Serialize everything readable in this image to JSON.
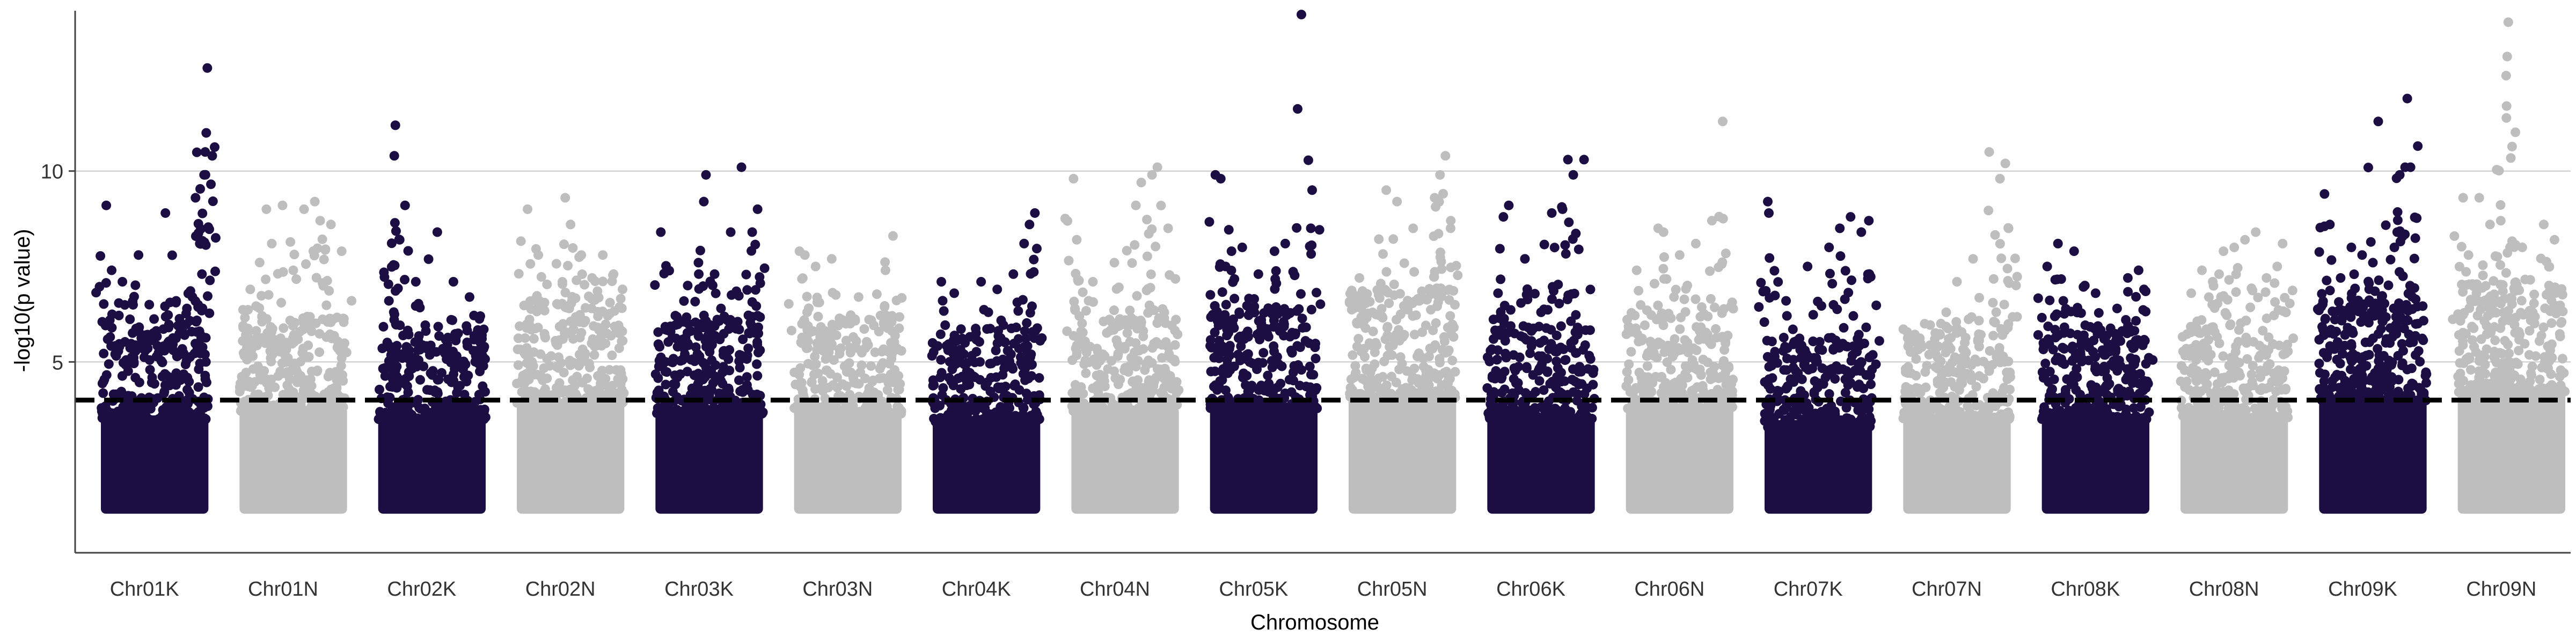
{
  "chart_data": {
    "type": "scatter",
    "title": "",
    "xlabel": "Chromosome",
    "ylabel": "-log10(p value)",
    "ylim": [
      0,
      14.2
    ],
    "yticks": [
      5,
      10
    ],
    "grid": "horizontal major lines only",
    "legend": "none",
    "threshold": {
      "y": 4,
      "style": "dashed",
      "color": "#000000"
    },
    "colors": {
      "odd": "#1c0e42",
      "even": "#bebebe"
    },
    "categories": [
      "Chr01K",
      "Chr01N",
      "Chr02K",
      "Chr02N",
      "Chr03K",
      "Chr03N",
      "Chr04K",
      "Chr04N",
      "Chr05K",
      "Chr05N",
      "Chr06K",
      "Chr06N",
      "Chr07K",
      "Chr07N",
      "Chr08K",
      "Chr08N",
      "Chr09K",
      "Chr09N"
    ],
    "series": [
      {
        "category": "Chr01K",
        "band_top": 5.0,
        "peaks": [
          [
            0.05,
            9.1
          ],
          [
            0.1,
            7.4
          ],
          [
            0.2,
            7.1
          ],
          [
            0.35,
            7.8
          ],
          [
            0.45,
            6.5
          ],
          [
            0.6,
            8.9
          ],
          [
            0.7,
            6.6
          ],
          [
            0.8,
            6.4
          ],
          [
            0.88,
            9.3
          ],
          [
            0.92,
            8.1
          ],
          [
            0.94,
            7.3
          ],
          [
            0.96,
            9.9
          ],
          [
            0.97,
            10.5
          ],
          [
            0.98,
            11.0
          ],
          [
            0.99,
            12.7
          ]
        ]
      },
      {
        "category": "Chr01N",
        "band_top": 5.3,
        "peaks": [
          [
            0.1,
            6.9
          ],
          [
            0.25,
            9.0
          ],
          [
            0.3,
            8.1
          ],
          [
            0.4,
            9.1
          ],
          [
            0.5,
            7.4
          ],
          [
            0.6,
            9.0
          ],
          [
            0.7,
            9.2
          ],
          [
            0.75,
            8.7
          ],
          [
            0.85,
            8.6
          ],
          [
            0.95,
            7.9
          ]
        ]
      },
      {
        "category": "Chr02K",
        "band_top": 5.0,
        "peaks": [
          [
            0.1,
            6.6
          ],
          [
            0.15,
            10.4
          ],
          [
            0.16,
            11.2
          ],
          [
            0.2,
            8.2
          ],
          [
            0.25,
            9.1
          ],
          [
            0.35,
            7.1
          ],
          [
            0.55,
            8.4
          ],
          [
            0.7,
            7.1
          ],
          [
            0.85,
            6.7
          ],
          [
            0.95,
            6.2
          ]
        ]
      },
      {
        "category": "Chr02N",
        "band_top": 5.6,
        "peaks": [
          [
            0.1,
            9.0
          ],
          [
            0.2,
            7.8
          ],
          [
            0.45,
            9.3
          ],
          [
            0.5,
            8.6
          ],
          [
            0.6,
            7.8
          ],
          [
            0.7,
            7.2
          ],
          [
            0.8,
            7.8
          ],
          [
            0.9,
            7.3
          ]
        ]
      },
      {
        "category": "Chr03K",
        "band_top": 5.2,
        "peaks": [
          [
            0.05,
            8.4
          ],
          [
            0.3,
            7.0
          ],
          [
            0.4,
            7.6
          ],
          [
            0.45,
            9.2
          ],
          [
            0.47,
            9.9
          ],
          [
            0.55,
            7.3
          ],
          [
            0.7,
            8.4
          ],
          [
            0.8,
            10.1
          ],
          [
            0.9,
            8.4
          ],
          [
            0.95,
            9.0
          ]
        ]
      },
      {
        "category": "Chr03N",
        "band_top": 5.2,
        "peaks": [
          [
            0.05,
            7.9
          ],
          [
            0.1,
            7.8
          ],
          [
            0.2,
            7.5
          ],
          [
            0.35,
            7.7
          ],
          [
            0.45,
            6.1
          ],
          [
            0.6,
            6.7
          ],
          [
            0.85,
            7.4
          ],
          [
            0.92,
            8.3
          ]
        ]
      },
      {
        "category": "Chr04K",
        "band_top": 4.9,
        "peaks": [
          [
            0.08,
            7.1
          ],
          [
            0.2,
            6.8
          ],
          [
            0.3,
            5.5
          ],
          [
            0.45,
            7.1
          ],
          [
            0.6,
            6.9
          ],
          [
            0.75,
            7.3
          ],
          [
            0.85,
            8.1
          ],
          [
            0.9,
            8.6
          ],
          [
            0.95,
            8.9
          ]
        ]
      },
      {
        "category": "Chr04N",
        "band_top": 5.3,
        "peaks": [
          [
            0.02,
            9.8
          ],
          [
            0.05,
            8.2
          ],
          [
            0.2,
            7.1
          ],
          [
            0.4,
            7.6
          ],
          [
            0.6,
            9.1
          ],
          [
            0.65,
            9.7
          ],
          [
            0.75,
            9.9
          ],
          [
            0.8,
            10.1
          ],
          [
            0.9,
            8.5
          ]
        ]
      },
      {
        "category": "Chr05K",
        "band_top": 5.4,
        "peaks": [
          [
            0.05,
            9.9
          ],
          [
            0.1,
            9.8
          ],
          [
            0.15,
            6.5
          ],
          [
            0.2,
            7.9
          ],
          [
            0.3,
            8.0
          ],
          [
            0.45,
            7.3
          ],
          [
            0.6,
            7.9
          ],
          [
            0.7,
            8.1
          ],
          [
            0.85,
            14.1
          ],
          [
            0.95,
            9.5
          ]
        ]
      },
      {
        "category": "Chr05N",
        "band_top": 5.8,
        "peaks": [
          [
            0.1,
            7.2
          ],
          [
            0.35,
            9.5
          ],
          [
            0.45,
            9.2
          ],
          [
            0.6,
            8.5
          ],
          [
            0.8,
            9.3
          ],
          [
            0.85,
            9.9
          ],
          [
            0.9,
            10.4
          ],
          [
            0.95,
            8.7
          ]
        ]
      },
      {
        "category": "Chr06K",
        "band_top": 5.0,
        "peaks": [
          [
            0.1,
            6.8
          ],
          [
            0.15,
            8.8
          ],
          [
            0.2,
            9.1
          ],
          [
            0.35,
            7.7
          ],
          [
            0.5,
            6.3
          ],
          [
            0.6,
            8.9
          ],
          [
            0.7,
            9.0
          ],
          [
            0.75,
            10.3
          ],
          [
            0.8,
            9.9
          ],
          [
            0.9,
            10.3
          ]
        ]
      },
      {
        "category": "Chr06N",
        "band_top": 5.4,
        "peaks": [
          [
            0.1,
            7.4
          ],
          [
            0.3,
            8.5
          ],
          [
            0.35,
            8.4
          ],
          [
            0.5,
            7.8
          ],
          [
            0.65,
            8.1
          ],
          [
            0.8,
            8.7
          ],
          [
            0.9,
            11.3
          ]
        ]
      },
      {
        "category": "Chr07K",
        "band_top": 4.7,
        "peaks": [
          [
            0.03,
            9.2
          ],
          [
            0.04,
            8.9
          ],
          [
            0.2,
            6.6
          ],
          [
            0.4,
            7.5
          ],
          [
            0.6,
            8.0
          ],
          [
            0.7,
            8.5
          ],
          [
            0.8,
            8.8
          ],
          [
            0.9,
            8.4
          ],
          [
            0.97,
            8.7
          ]
        ]
      },
      {
        "category": "Chr07N",
        "band_top": 5.0,
        "peaks": [
          [
            0.2,
            6.0
          ],
          [
            0.4,
            6.3
          ],
          [
            0.5,
            7.1
          ],
          [
            0.65,
            7.7
          ],
          [
            0.8,
            10.5
          ],
          [
            0.9,
            9.8
          ],
          [
            0.95,
            10.2
          ],
          [
            0.98,
            8.5
          ]
        ]
      },
      {
        "category": "Chr08K",
        "band_top": 5.0,
        "peaks": [
          [
            0.05,
            7.5
          ],
          [
            0.15,
            8.1
          ],
          [
            0.2,
            6.6
          ],
          [
            0.3,
            7.9
          ],
          [
            0.4,
            7.0
          ],
          [
            0.5,
            6.8
          ],
          [
            0.7,
            6.4
          ],
          [
            0.8,
            7.2
          ],
          [
            0.9,
            7.4
          ],
          [
            0.95,
            6.9
          ]
        ]
      },
      {
        "category": "Chr08N",
        "band_top": 5.0,
        "peaks": [
          [
            0.1,
            6.8
          ],
          [
            0.2,
            7.4
          ],
          [
            0.3,
            7.1
          ],
          [
            0.4,
            7.9
          ],
          [
            0.5,
            8.0
          ],
          [
            0.6,
            8.2
          ],
          [
            0.7,
            8.4
          ],
          [
            0.8,
            7.2
          ],
          [
            0.9,
            7.5
          ],
          [
            0.95,
            8.1
          ]
        ]
      },
      {
        "category": "Chr09K",
        "band_top": 5.7,
        "peaks": [
          [
            0.05,
            9.4
          ],
          [
            0.1,
            8.6
          ],
          [
            0.2,
            7.2
          ],
          [
            0.3,
            8.0
          ],
          [
            0.4,
            7.8
          ],
          [
            0.5,
            7.6
          ],
          [
            0.55,
            11.3
          ],
          [
            0.7,
            8.0
          ],
          [
            0.75,
            9.9
          ],
          [
            0.8,
            10.1
          ],
          [
            0.82,
            11.9
          ],
          [
            0.85,
            10.1
          ]
        ]
      },
      {
        "category": "Chr09N",
        "band_top": 6.0,
        "peaks": [
          [
            0.05,
            9.3
          ],
          [
            0.1,
            7.8
          ],
          [
            0.2,
            9.3
          ],
          [
            0.3,
            8.6
          ],
          [
            0.4,
            8.7
          ],
          [
            0.45,
            12.5
          ],
          [
            0.46,
            13.0
          ],
          [
            0.47,
            13.9
          ],
          [
            0.6,
            8.0
          ],
          [
            0.8,
            8.6
          ],
          [
            0.9,
            8.2
          ]
        ]
      }
    ]
  }
}
